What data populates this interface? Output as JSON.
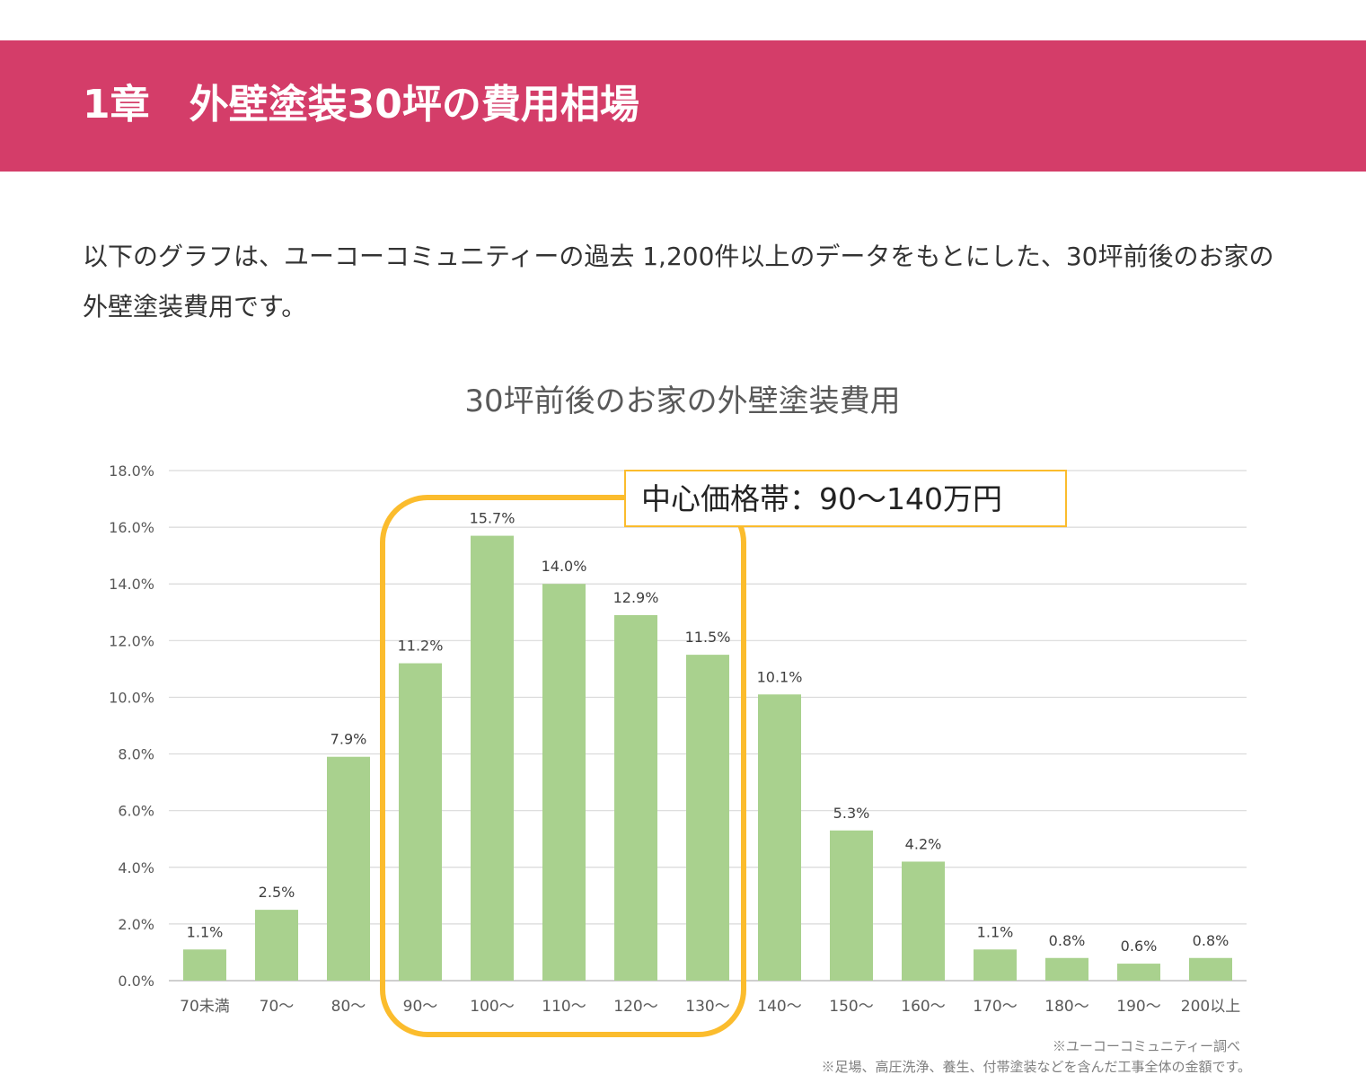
{
  "header": {
    "title": "1章　外壁塗装30坪の費用相場",
    "banner_color": "#d43d69"
  },
  "intro": {
    "text": "以下のグラフは、ユーコーコミュニティーの過去 1,200件以上のデータをもとにした、30坪前後のお家の外壁塗装費用です。"
  },
  "chart_data": {
    "type": "bar",
    "title": "30坪前後のお家の外壁塗装費用",
    "xlabel": "",
    "ylabel": "",
    "ylim": [
      0,
      18
    ],
    "y_ticks": [
      "0.0%",
      "2.0%",
      "4.0%",
      "6.0%",
      "8.0%",
      "10.0%",
      "12.0%",
      "14.0%",
      "16.0%",
      "18.0%"
    ],
    "grid": true,
    "bar_color": "#a9d18e",
    "categories": [
      "70未満",
      "70～",
      "80～",
      "90～",
      "100～",
      "110～",
      "120～",
      "130～",
      "140～",
      "150～",
      "160～",
      "170～",
      "180～",
      "190～",
      "200以上"
    ],
    "values": [
      1.1,
      2.5,
      7.9,
      11.2,
      15.7,
      14.0,
      12.9,
      11.5,
      10.1,
      5.3,
      4.2,
      1.1,
      0.8,
      0.6,
      0.8
    ],
    "data_labels": [
      "1.1%",
      "2.5%",
      "7.9%",
      "11.2%",
      "15.7%",
      "14.0%",
      "12.9%",
      "11.5%",
      "10.1%",
      "5.3%",
      "4.2%",
      "1.1%",
      "0.8%",
      "0.6%",
      "0.8%"
    ],
    "highlight": {
      "label": "中心価格帯：90～140万円",
      "categories": [
        "90～",
        "100～",
        "110～",
        "120～",
        "130～"
      ],
      "color": "#fbbc2d"
    },
    "notes": [
      "※ユーコーコミュニティー調べ",
      "※足場、高圧洗浄、養生、付帯塗装などを含んだ工事全体の金額です。"
    ]
  }
}
